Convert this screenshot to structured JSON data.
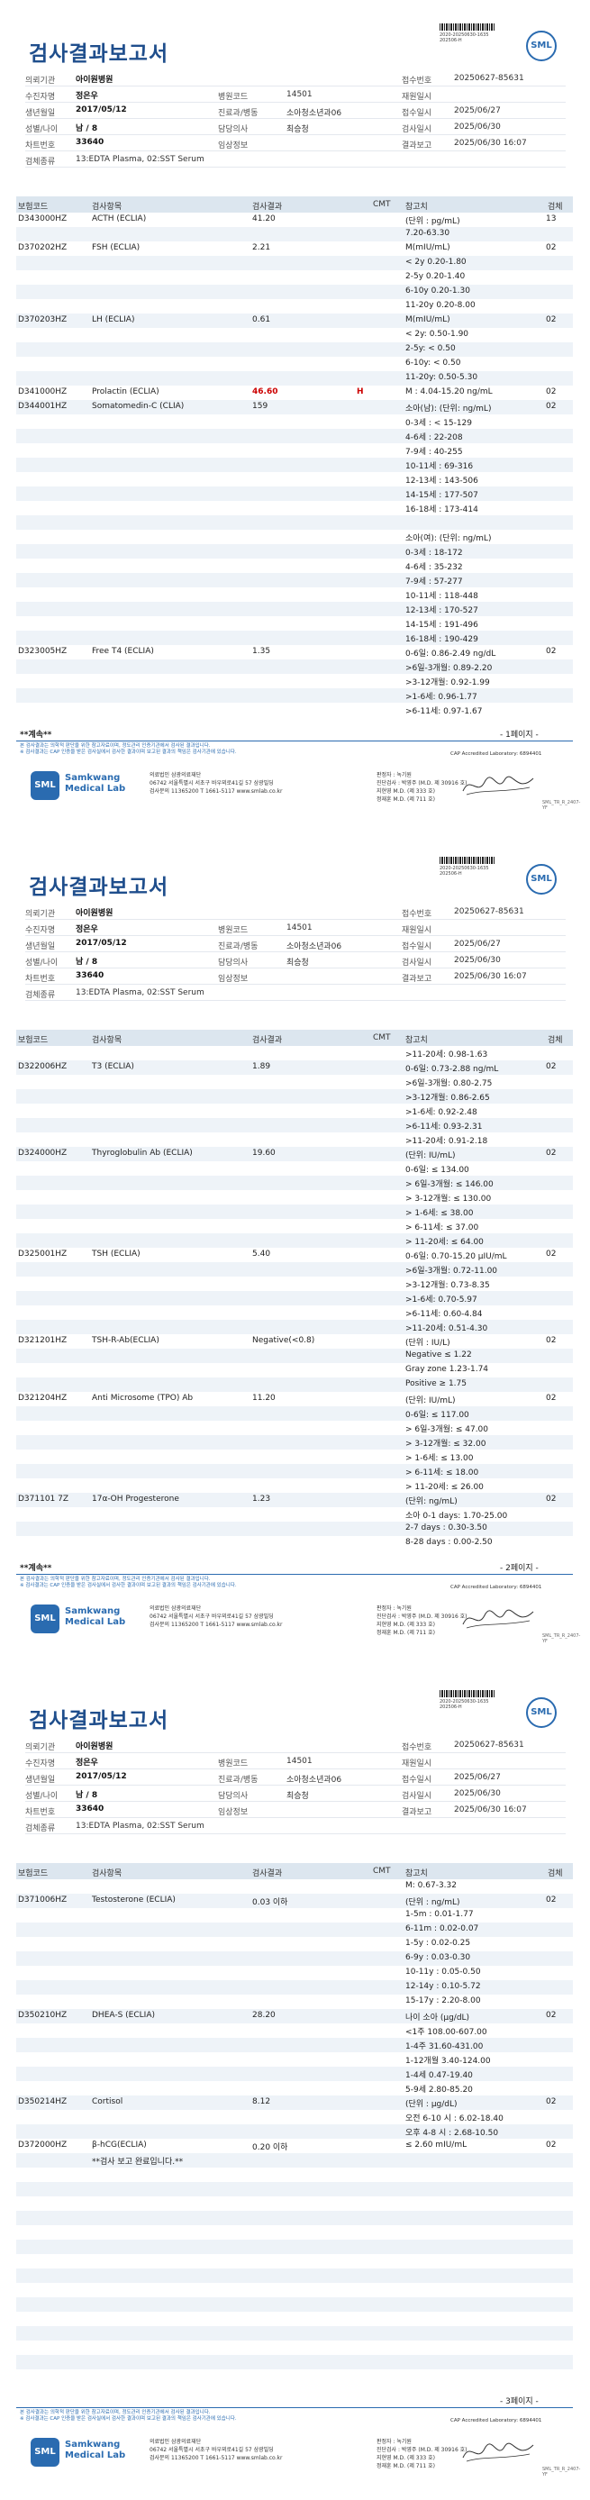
{
  "report_title": "검사결과보고서",
  "barcode_text": [
    "2020-20250630-1635",
    "202506-H"
  ],
  "logo_text": "SML",
  "patient": {
    "labels": {
      "institution": "의뢰기관",
      "patient": "수진자명",
      "birth": "생년월일",
      "sex_age": "성별/나이",
      "chart": "차트번호",
      "specimen": "검체종류",
      "hospital_code": "병원코드",
      "dept": "진료과/병동",
      "doctor": "담당의사",
      "clinical": "임상정보",
      "receipt": "접수번호",
      "admission": "재원일시",
      "collect": "접수일시",
      "test_date": "검사일시",
      "result_date": "결과보고"
    },
    "institution": "아이원병원",
    "name": "정은우",
    "birth": "2017/05/12",
    "sex_age": "남 / 8",
    "chart": "33640",
    "specimen": "13:EDTA Plasma, 02:SST Serum",
    "hospital_code": "14501",
    "dept": "소아청소년과06",
    "doctor": "최승청",
    "receipt_no": "20250627-85631",
    "collect_date": "2025/06/27",
    "test_date": "2025/06/30",
    "result_date": "2025/06/30 16:07"
  },
  "columns": {
    "code": "보험코드",
    "name": "검사항목",
    "result": "검사결과",
    "cmt": "CMT",
    "ref": "참고치",
    "unit": "검체"
  },
  "pages": [
    {
      "rows": [
        {
          "code": "D343000HZ",
          "name": "ACTH (ECLIA)",
          "result": "41.20",
          "flag": "",
          "ref": "(단위 : pg/mL)",
          "unit": "13"
        },
        {
          "code": "",
          "name": "",
          "result": "",
          "flag": "",
          "ref": "7.20-63.30",
          "unit": ""
        },
        {
          "code": "D370202HZ",
          "name": "FSH (ECLIA)",
          "result": "2.21",
          "flag": "",
          "ref": "M(mIU/mL)",
          "unit": "02"
        },
        {
          "code": "",
          "name": "",
          "result": "",
          "flag": "",
          "ref": "< 2y 0.20-1.80",
          "unit": ""
        },
        {
          "code": "",
          "name": "",
          "result": "",
          "flag": "",
          "ref": "2-5y 0.20-1.40",
          "unit": ""
        },
        {
          "code": "",
          "name": "",
          "result": "",
          "flag": "",
          "ref": "6-10y 0.20-1.30",
          "unit": ""
        },
        {
          "code": "",
          "name": "",
          "result": "",
          "flag": "",
          "ref": "11-20y 0.20-8.00",
          "unit": ""
        },
        {
          "code": "D370203HZ",
          "name": "LH (ECLIA)",
          "result": "0.61",
          "flag": "",
          "ref": "M(mIU/mL)",
          "unit": "02"
        },
        {
          "code": "",
          "name": "",
          "result": "",
          "flag": "",
          "ref": "< 2y: 0.50-1.90",
          "unit": ""
        },
        {
          "code": "",
          "name": "",
          "result": "",
          "flag": "",
          "ref": "2-5y: < 0.50",
          "unit": ""
        },
        {
          "code": "",
          "name": "",
          "result": "",
          "flag": "",
          "ref": "6-10y: < 0.50",
          "unit": ""
        },
        {
          "code": "",
          "name": "",
          "result": "",
          "flag": "",
          "ref": "11-20y: 0.50-5.30",
          "unit": ""
        },
        {
          "code": "D341000HZ",
          "name": "Prolactin (ECLIA)",
          "result": "46.60",
          "flag": "H",
          "ref": "M : 4.04-15.20 ng/mL",
          "unit": "02"
        },
        {
          "code": "D344001HZ",
          "name": "Somatomedin-C (CLIA)",
          "result": "159",
          "flag": "",
          "ref": "소아(남): (단위: ng/mL)",
          "unit": "02"
        },
        {
          "code": "",
          "name": "",
          "result": "",
          "flag": "",
          "ref": "0-3세 : < 15-129",
          "unit": ""
        },
        {
          "code": "",
          "name": "",
          "result": "",
          "flag": "",
          "ref": "4-6세 : 22-208",
          "unit": ""
        },
        {
          "code": "",
          "name": "",
          "result": "",
          "flag": "",
          "ref": "7-9세 : 40-255",
          "unit": ""
        },
        {
          "code": "",
          "name": "",
          "result": "",
          "flag": "",
          "ref": "10-11세 : 69-316",
          "unit": ""
        },
        {
          "code": "",
          "name": "",
          "result": "",
          "flag": "",
          "ref": "12-13세 : 143-506",
          "unit": ""
        },
        {
          "code": "",
          "name": "",
          "result": "",
          "flag": "",
          "ref": "14-15세 : 177-507",
          "unit": ""
        },
        {
          "code": "",
          "name": "",
          "result": "",
          "flag": "",
          "ref": "16-18세 : 173-414",
          "unit": ""
        },
        {
          "code": "",
          "name": "",
          "result": "",
          "flag": "",
          "ref": "",
          "unit": ""
        },
        {
          "code": "",
          "name": "",
          "result": "",
          "flag": "",
          "ref": "소아(여): (단위: ng/mL)",
          "unit": ""
        },
        {
          "code": "",
          "name": "",
          "result": "",
          "flag": "",
          "ref": "0-3세 : 18-172",
          "unit": ""
        },
        {
          "code": "",
          "name": "",
          "result": "",
          "flag": "",
          "ref": "4-6세 : 35-232",
          "unit": ""
        },
        {
          "code": "",
          "name": "",
          "result": "",
          "flag": "",
          "ref": "7-9세 : 57-277",
          "unit": ""
        },
        {
          "code": "",
          "name": "",
          "result": "",
          "flag": "",
          "ref": "10-11세 : 118-448",
          "unit": ""
        },
        {
          "code": "",
          "name": "",
          "result": "",
          "flag": "",
          "ref": "12-13세 : 170-527",
          "unit": ""
        },
        {
          "code": "",
          "name": "",
          "result": "",
          "flag": "",
          "ref": "14-15세 : 191-496",
          "unit": ""
        },
        {
          "code": "",
          "name": "",
          "result": "",
          "flag": "",
          "ref": "16-18세 : 190-429",
          "unit": ""
        },
        {
          "code": "D323005HZ",
          "name": "Free T4 (ECLIA)",
          "result": "1.35",
          "flag": "",
          "ref": "0-6일: 0.86-2.49 ng/dL",
          "unit": "02"
        },
        {
          "code": "",
          "name": "",
          "result": "",
          "flag": "",
          "ref": ">6일-3개월: 0.89-2.20",
          "unit": ""
        },
        {
          "code": "",
          "name": "",
          "result": "",
          "flag": "",
          "ref": ">3-12개월: 0.92-1.99",
          "unit": ""
        },
        {
          "code": "",
          "name": "",
          "result": "",
          "flag": "",
          "ref": ">1-6세: 0.96-1.77",
          "unit": ""
        },
        {
          "code": "",
          "name": "",
          "result": "",
          "flag": "",
          "ref": ">6-11세: 0.97-1.67",
          "unit": ""
        }
      ],
      "footer_note": "**계속**",
      "page_no": "- 1페이지 -"
    },
    {
      "rows": [
        {
          "code": "",
          "name": "",
          "result": "",
          "flag": "",
          "ref": ">11-20세: 0.98-1.63",
          "unit": ""
        },
        {
          "code": "D322006HZ",
          "name": "T3 (ECLIA)",
          "result": "1.89",
          "flag": "",
          "ref": "0-6일: 0.73-2.88 ng/mL",
          "unit": "02"
        },
        {
          "code": "",
          "name": "",
          "result": "",
          "flag": "",
          "ref": ">6일-3개월: 0.80-2.75",
          "unit": ""
        },
        {
          "code": "",
          "name": "",
          "result": "",
          "flag": "",
          "ref": ">3-12개월: 0.86-2.65",
          "unit": ""
        },
        {
          "code": "",
          "name": "",
          "result": "",
          "flag": "",
          "ref": ">1-6세: 0.92-2.48",
          "unit": ""
        },
        {
          "code": "",
          "name": "",
          "result": "",
          "flag": "",
          "ref": ">6-11세: 0.93-2.31",
          "unit": ""
        },
        {
          "code": "",
          "name": "",
          "result": "",
          "flag": "",
          "ref": ">11-20세: 0.91-2.18",
          "unit": ""
        },
        {
          "code": "D324000HZ",
          "name": "Thyroglobulin Ab (ECLIA)",
          "result": "19.60",
          "flag": "",
          "ref": "(단위: IU/mL)",
          "unit": "02"
        },
        {
          "code": "",
          "name": "",
          "result": "",
          "flag": "",
          "ref": "0-6일: ≤ 134.00",
          "unit": ""
        },
        {
          "code": "",
          "name": "",
          "result": "",
          "flag": "",
          "ref": "> 6일-3개월: ≤ 146.00",
          "unit": ""
        },
        {
          "code": "",
          "name": "",
          "result": "",
          "flag": "",
          "ref": "> 3-12개월: ≤ 130.00",
          "unit": ""
        },
        {
          "code": "",
          "name": "",
          "result": "",
          "flag": "",
          "ref": "> 1-6세: ≤ 38.00",
          "unit": ""
        },
        {
          "code": "",
          "name": "",
          "result": "",
          "flag": "",
          "ref": "> 6-11세: ≤ 37.00",
          "unit": ""
        },
        {
          "code": "",
          "name": "",
          "result": "",
          "flag": "",
          "ref": "> 11-20세: ≤ 64.00",
          "unit": ""
        },
        {
          "code": "D325001HZ",
          "name": "TSH (ECLIA)",
          "result": "5.40",
          "flag": "",
          "ref": "0-6일: 0.70-15.20 μIU/mL",
          "unit": "02"
        },
        {
          "code": "",
          "name": "",
          "result": "",
          "flag": "",
          "ref": ">6일-3개월: 0.72-11.00",
          "unit": ""
        },
        {
          "code": "",
          "name": "",
          "result": "",
          "flag": "",
          "ref": ">3-12개월: 0.73-8.35",
          "unit": ""
        },
        {
          "code": "",
          "name": "",
          "result": "",
          "flag": "",
          "ref": ">1-6세: 0.70-5.97",
          "unit": ""
        },
        {
          "code": "",
          "name": "",
          "result": "",
          "flag": "",
          "ref": ">6-11세: 0.60-4.84",
          "unit": ""
        },
        {
          "code": "",
          "name": "",
          "result": "",
          "flag": "",
          "ref": ">11-20세: 0.51-4.30",
          "unit": ""
        },
        {
          "code": "D321201HZ",
          "name": "TSH-R-Ab(ECLIA)",
          "result": "Negative(<0.8)",
          "flag": "",
          "ref": "(단위 : IU/L)",
          "unit": "02"
        },
        {
          "code": "",
          "name": "",
          "result": "",
          "flag": "",
          "ref": "Negative ≤ 1.22",
          "unit": ""
        },
        {
          "code": "",
          "name": "",
          "result": "",
          "flag": "",
          "ref": "Gray zone 1.23-1.74",
          "unit": ""
        },
        {
          "code": "",
          "name": "",
          "result": "",
          "flag": "",
          "ref": "Positive ≥ 1.75",
          "unit": ""
        },
        {
          "code": "D321204HZ",
          "name": "Anti Microsome (TPO) Ab",
          "result": "11.20",
          "flag": "",
          "ref": "(단위: IU/mL)",
          "unit": "02"
        },
        {
          "code": "",
          "name": "",
          "result": "",
          "flag": "",
          "ref": "0-6일: ≤ 117.00",
          "unit": ""
        },
        {
          "code": "",
          "name": "",
          "result": "",
          "flag": "",
          "ref": "> 6일-3개월: ≤ 47.00",
          "unit": ""
        },
        {
          "code": "",
          "name": "",
          "result": "",
          "flag": "",
          "ref": "> 3-12개월: ≤ 32.00",
          "unit": ""
        },
        {
          "code": "",
          "name": "",
          "result": "",
          "flag": "",
          "ref": "> 1-6세: ≤ 13.00",
          "unit": ""
        },
        {
          "code": "",
          "name": "",
          "result": "",
          "flag": "",
          "ref": "> 6-11세: ≤ 18.00",
          "unit": ""
        },
        {
          "code": "",
          "name": "",
          "result": "",
          "flag": "",
          "ref": "> 11-20세: ≤ 26.00",
          "unit": ""
        },
        {
          "code": "D371101 7Z",
          "name": "17α-OH Progesterone",
          "result": "1.23",
          "flag": "",
          "ref": "(단위: ng/mL)",
          "unit": "02"
        },
        {
          "code": "",
          "name": "",
          "result": "",
          "flag": "",
          "ref": "소아 0-1 days: 1.70-25.00",
          "unit": ""
        },
        {
          "code": "",
          "name": "",
          "result": "",
          "flag": "",
          "ref": "2-7 days : 0.30-3.50",
          "unit": ""
        },
        {
          "code": "",
          "name": "",
          "result": "",
          "flag": "",
          "ref": "8-28 days : 0.00-2.50",
          "unit": ""
        }
      ],
      "footer_note": "**계속**",
      "page_no": "- 2페이지 -"
    },
    {
      "rows": [
        {
          "code": "",
          "name": "",
          "result": "",
          "flag": "",
          "ref": "M: 0.67-3.32",
          "unit": ""
        },
        {
          "code": "D371006HZ",
          "name": "Testosterone (ECLIA)",
          "result": "0.03 이하",
          "flag": "",
          "ref": "(단위 : ng/mL)",
          "unit": "02"
        },
        {
          "code": "",
          "name": "",
          "result": "",
          "flag": "",
          "ref": "1-5m : 0.01-1.77",
          "unit": ""
        },
        {
          "code": "",
          "name": "",
          "result": "",
          "flag": "",
          "ref": "6-11m : 0.02-0.07",
          "unit": ""
        },
        {
          "code": "",
          "name": "",
          "result": "",
          "flag": "",
          "ref": "1-5y : 0.02-0.25",
          "unit": ""
        },
        {
          "code": "",
          "name": "",
          "result": "",
          "flag": "",
          "ref": "6-9y : 0.03-0.30",
          "unit": ""
        },
        {
          "code": "",
          "name": "",
          "result": "",
          "flag": "",
          "ref": "10-11y : 0.05-0.50",
          "unit": ""
        },
        {
          "code": "",
          "name": "",
          "result": "",
          "flag": "",
          "ref": "12-14y : 0.10-5.72",
          "unit": ""
        },
        {
          "code": "",
          "name": "",
          "result": "",
          "flag": "",
          "ref": "15-17y : 2.20-8.00",
          "unit": ""
        },
        {
          "code": "D350210HZ",
          "name": "DHEA-S (ECLIA)",
          "result": "28.20",
          "flag": "",
          "ref": "나이 소아 (μg/dL)",
          "unit": "02"
        },
        {
          "code": "",
          "name": "",
          "result": "",
          "flag": "",
          "ref": "<1주 108.00-607.00",
          "unit": ""
        },
        {
          "code": "",
          "name": "",
          "result": "",
          "flag": "",
          "ref": "1-4주 31.60-431.00",
          "unit": ""
        },
        {
          "code": "",
          "name": "",
          "result": "",
          "flag": "",
          "ref": "1-12개월 3.40-124.00",
          "unit": ""
        },
        {
          "code": "",
          "name": "",
          "result": "",
          "flag": "",
          "ref": "1-4세 0.47-19.40",
          "unit": ""
        },
        {
          "code": "",
          "name": "",
          "result": "",
          "flag": "",
          "ref": "5-9세 2.80-85.20",
          "unit": ""
        },
        {
          "code": "D350214HZ",
          "name": "Cortisol",
          "result": "8.12",
          "flag": "",
          "ref": "(단위 : μg/dL)",
          "unit": "02"
        },
        {
          "code": "",
          "name": "",
          "result": "",
          "flag": "",
          "ref": "오전 6-10 시 : 6.02-18.40",
          "unit": ""
        },
        {
          "code": "",
          "name": "",
          "result": "",
          "flag": "",
          "ref": "오후 4-8 시 : 2.68-10.50",
          "unit": ""
        },
        {
          "code": "D372000HZ",
          "name": "β-hCG(ECLIA)",
          "result": "0.20 이하",
          "flag": "",
          "ref": "≤ 2.60 mIU/mL",
          "unit": "02"
        },
        {
          "code": "",
          "name": "**검사 보고 완료입니다.**",
          "result": "",
          "flag": "",
          "ref": "",
          "unit": ""
        },
        {
          "code": "",
          "name": "",
          "result": "",
          "flag": "",
          "ref": "",
          "unit": ""
        },
        {
          "code": "",
          "name": "",
          "result": "",
          "flag": "",
          "ref": "",
          "unit": ""
        },
        {
          "code": "",
          "name": "",
          "result": "",
          "flag": "",
          "ref": "",
          "unit": ""
        },
        {
          "code": "",
          "name": "",
          "result": "",
          "flag": "",
          "ref": "",
          "unit": ""
        },
        {
          "code": "",
          "name": "",
          "result": "",
          "flag": "",
          "ref": "",
          "unit": ""
        },
        {
          "code": "",
          "name": "",
          "result": "",
          "flag": "",
          "ref": "",
          "unit": ""
        },
        {
          "code": "",
          "name": "",
          "result": "",
          "flag": "",
          "ref": "",
          "unit": ""
        },
        {
          "code": "",
          "name": "",
          "result": "",
          "flag": "",
          "ref": "",
          "unit": ""
        },
        {
          "code": "",
          "name": "",
          "result": "",
          "flag": "",
          "ref": "",
          "unit": ""
        },
        {
          "code": "",
          "name": "",
          "result": "",
          "flag": "",
          "ref": "",
          "unit": ""
        },
        {
          "code": "",
          "name": "",
          "result": "",
          "flag": "",
          "ref": "",
          "unit": ""
        },
        {
          "code": "",
          "name": "",
          "result": "",
          "flag": "",
          "ref": "",
          "unit": ""
        },
        {
          "code": "",
          "name": "",
          "result": "",
          "flag": "",
          "ref": "",
          "unit": ""
        },
        {
          "code": "",
          "name": "",
          "result": "",
          "flag": "",
          "ref": "",
          "unit": ""
        },
        {
          "code": "",
          "name": "",
          "result": "",
          "flag": "",
          "ref": "",
          "unit": ""
        }
      ],
      "footer_note": "",
      "page_no": "- 3페이지 -"
    }
  ],
  "disclaimer": [
    "본 검사결과는 의학적 판단을 위한 참고자료이며, 정도관리 인증기관에서 검사된 결과입니다.",
    "※ 검사결과는 CAP 인증을 받은 검사실에서 검사한 결과이며 보고된 결과의 책임은 검사기관에 있습니다."
  ],
  "cap_text": "CAP Accredited Laboratory: 6894401",
  "footer": {
    "org_name_line1": "Samkwang",
    "org_name_line2": "Medical Lab",
    "logo": "SML",
    "addr1": "의료법인 삼광의료재단",
    "addr2": "06742 서울특별시 서초구 바우뫼로41길 57 삼광빌딩",
    "addr3": "검사문의 11365200 T 1661-5117 www.smlab.co.kr",
    "doc1": "판정자 : 녹기원",
    "doc2": "진단검사 : 박영주 (M.D. 제 30916 호)",
    "doc3": "                지현영 M.D. (제 333 호)",
    "doc4": "                정재훈 M.D. (제 711 호)",
    "code": "SML_TR_R_2407-YF"
  }
}
